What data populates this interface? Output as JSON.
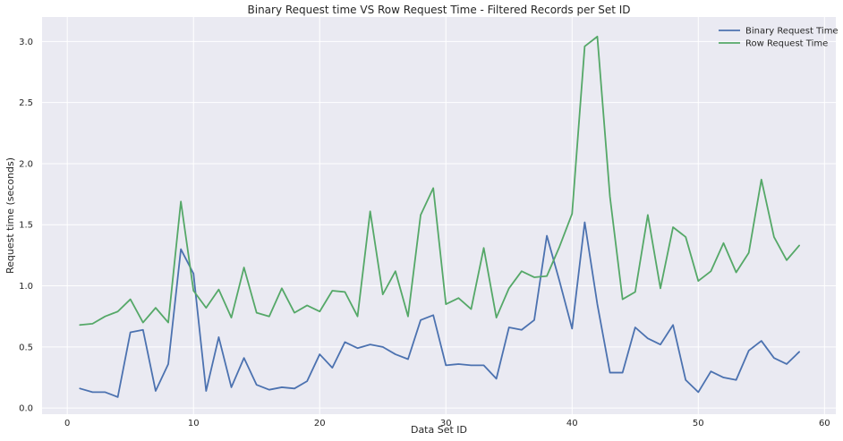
{
  "chart_data": {
    "type": "line",
    "title": "Binary Request time VS Row Request Time - Filtered Records per Set ID",
    "xlabel": "Data Set ID",
    "ylabel": "Request time (seconds)",
    "xlim": [
      -2,
      60.9
    ],
    "ylim": [
      -0.05,
      3.2
    ],
    "xticks": [
      0,
      10,
      20,
      30,
      40,
      50,
      60
    ],
    "yticks": [
      0.0,
      0.5,
      1.0,
      1.5,
      2.0,
      2.5,
      3.0
    ],
    "xtick_labels": [
      "0",
      "10",
      "20",
      "30",
      "40",
      "50",
      "60"
    ],
    "ytick_labels": [
      "0.0",
      "0.5",
      "1.0",
      "1.5",
      "2.0",
      "2.5",
      "3.0"
    ],
    "grid": true,
    "legend_position": "top-right",
    "x": [
      1,
      2,
      3,
      4,
      5,
      6,
      7,
      8,
      9,
      10,
      11,
      12,
      13,
      14,
      15,
      16,
      17,
      18,
      19,
      20,
      21,
      22,
      23,
      24,
      25,
      26,
      27,
      28,
      29,
      30,
      31,
      32,
      33,
      34,
      35,
      36,
      37,
      38,
      39,
      40,
      41,
      42,
      43,
      44,
      45,
      46,
      47,
      48,
      49,
      50,
      51,
      52,
      53,
      54,
      55,
      56,
      57,
      58
    ],
    "series": [
      {
        "name": "Binary Request Time",
        "color": "#4c72b0",
        "values": [
          0.16,
          0.13,
          0.13,
          0.09,
          0.62,
          0.64,
          0.14,
          0.36,
          1.3,
          1.1,
          0.14,
          0.58,
          0.17,
          0.41,
          0.19,
          0.15,
          0.17,
          0.16,
          0.22,
          0.44,
          0.33,
          0.54,
          0.49,
          0.52,
          0.5,
          0.44,
          0.4,
          0.72,
          0.76,
          0.35,
          0.36,
          0.35,
          0.35,
          0.24,
          0.66,
          0.64,
          0.72,
          1.41,
          1.04,
          0.65,
          1.52,
          0.85,
          0.29,
          0.29,
          0.66,
          0.57,
          0.52,
          0.68,
          0.23,
          0.13,
          0.3,
          0.25,
          0.23,
          0.47,
          0.55,
          0.41,
          0.36,
          0.46
        ]
      },
      {
        "name": "Row Request Time",
        "color": "#55a868",
        "values": [
          0.68,
          0.69,
          0.75,
          0.79,
          0.89,
          0.7,
          0.82,
          0.7,
          1.69,
          0.96,
          0.82,
          0.97,
          0.74,
          1.15,
          0.78,
          0.75,
          0.98,
          0.78,
          0.84,
          0.79,
          0.96,
          0.95,
          0.75,
          1.61,
          0.93,
          1.12,
          0.75,
          1.58,
          1.8,
          0.85,
          0.9,
          0.81,
          1.31,
          0.74,
          0.98,
          1.12,
          1.07,
          1.08,
          1.32,
          1.59,
          2.96,
          3.04,
          1.73,
          0.89,
          0.95,
          1.58,
          0.98,
          1.48,
          1.4,
          1.04,
          1.12,
          1.35,
          1.11,
          1.27,
          1.87,
          1.4,
          1.21,
          1.33
        ]
      }
    ]
  }
}
